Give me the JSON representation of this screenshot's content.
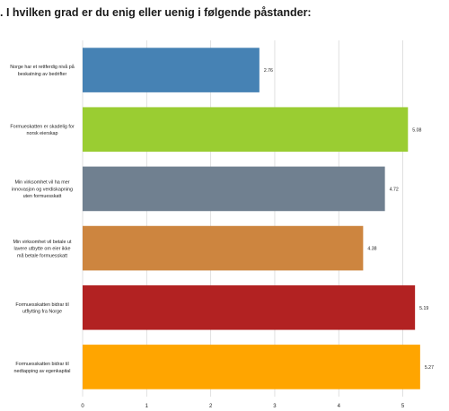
{
  "chart_data": {
    "type": "bar",
    "orientation": "horizontal",
    "title": ". I hvilken grad er du enig eller uenig i følgende påstander:",
    "categories": [
      "Norge har et rettferdig nivå på beskatning av bedrifter",
      "Formueskatten er skadelig for norsk eierskap",
      "Min virksomhet vil ha mer innovasjon og verdiskapning uten formuesskatt",
      "Min virksomhet vil betale ut lavere utbytte om eier ikke må betale formuesskatt",
      "Formuesskatten bidrar til utflytting fra Norge",
      "Formuesskatten bidrar til nedtapping av egenkapital"
    ],
    "category_lines": [
      [
        "Norge har et rettferdig nivå på",
        "beskatning av bedrifter"
      ],
      [
        "Formueskatten er skadelig for",
        "norsk eierskap"
      ],
      [
        "Min virksomhet vil ha mer",
        "innovasjon og verdiskapning",
        "uten formuesskatt"
      ],
      [
        "Min virksomhet vil betale ut",
        "lavere utbytte om eier ikke",
        "må betale formuesskatt"
      ],
      [
        "Formuesskatten bidrar til",
        "utflytting fra Norge"
      ],
      [
        "Formuesskatten bidrar til",
        "nedtapping av egenkapital"
      ]
    ],
    "values": [
      2.76,
      5.08,
      4.72,
      4.38,
      5.19,
      5.27
    ],
    "value_labels": [
      "2.76",
      "5.08",
      "4.72",
      "4.38",
      "5.19",
      "5.27"
    ],
    "colors": [
      "#4682b4",
      "#9acd32",
      "#708090",
      "#cd853f",
      "#b22222",
      "#ffa500"
    ],
    "xlim": [
      0,
      5.3
    ],
    "xticks": [
      0,
      1,
      2,
      3,
      4,
      5
    ],
    "grid": true,
    "legend": "none"
  }
}
